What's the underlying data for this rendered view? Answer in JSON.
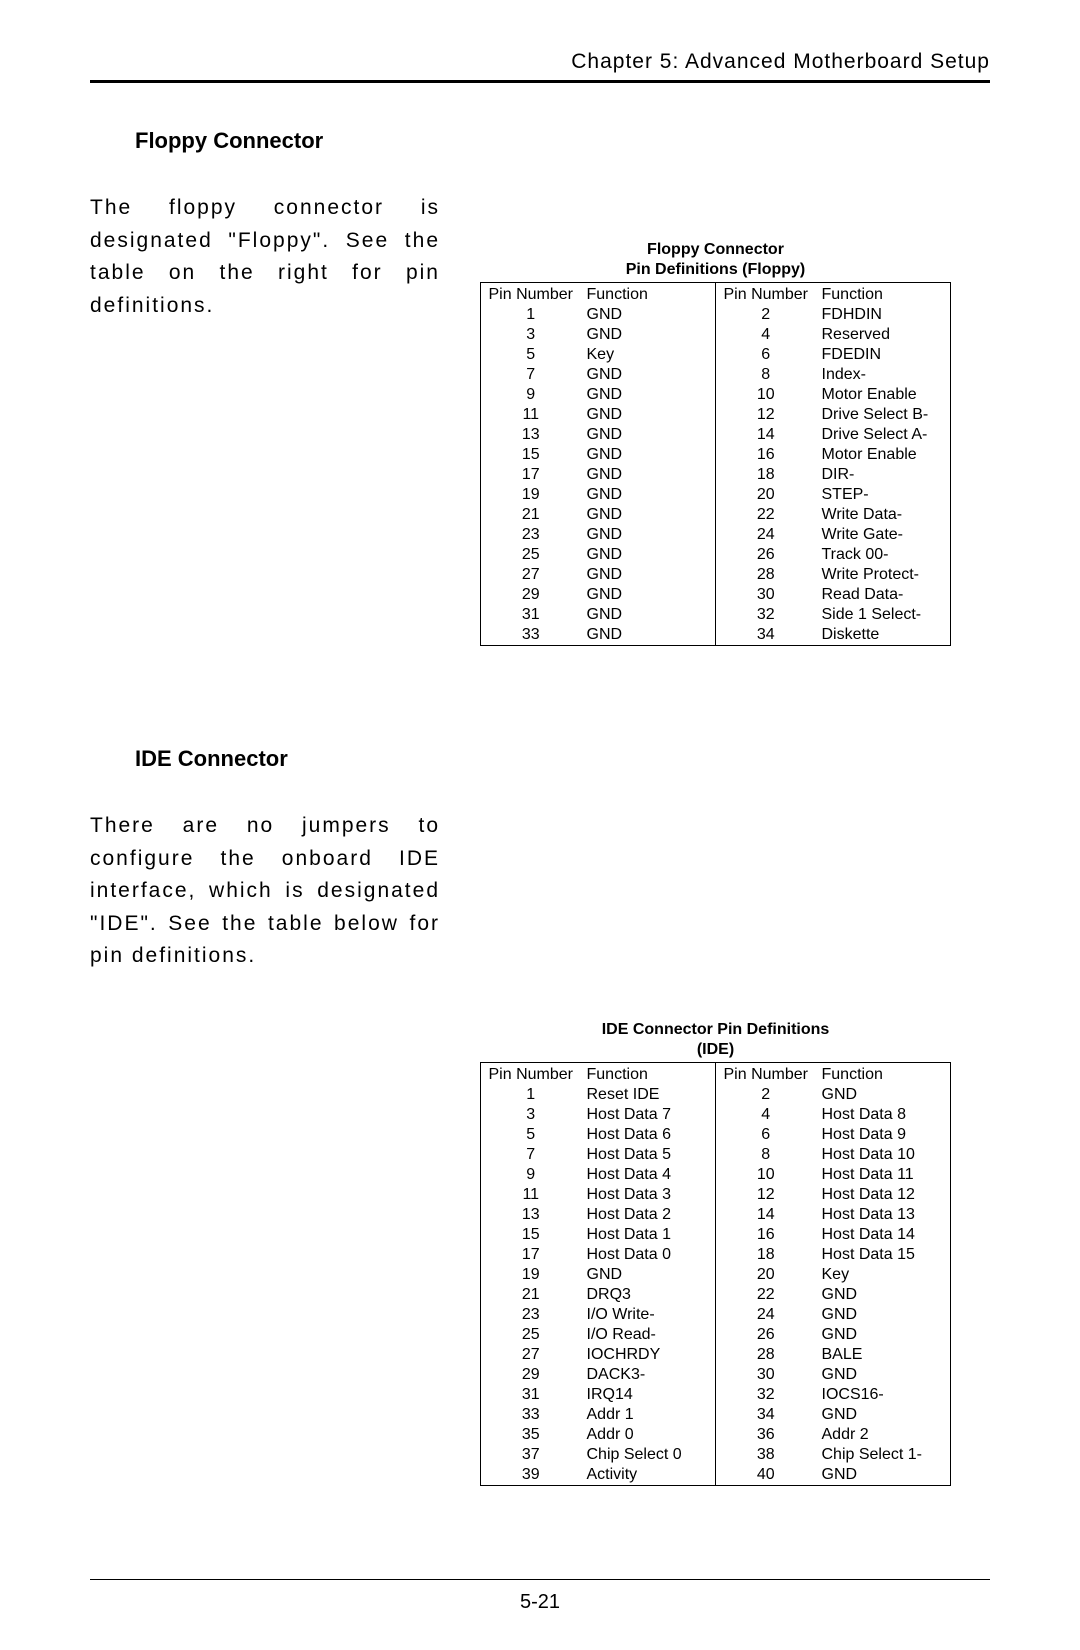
{
  "chapter_header": "Chapter 5: Advanced Motherboard Setup",
  "page_number": "5-21",
  "floppy": {
    "heading": "Floppy Connector",
    "text": "The floppy connector is designated \"Floppy\".  See the table on the right for pin definitions.",
    "table_title_1": "Floppy Connector",
    "table_title_2": "Pin Definitions (Floppy)",
    "col_headers": {
      "pn": "Pin Number",
      "fn": "Function"
    },
    "rows": [
      {
        "p1": "1",
        "f1": "GND",
        "p2": "2",
        "f2": "FDHDIN"
      },
      {
        "p1": "3",
        "f1": "GND",
        "p2": "4",
        "f2": "Reserved"
      },
      {
        "p1": "5",
        "f1": "Key",
        "p2": "6",
        "f2": "FDEDIN"
      },
      {
        "p1": "7",
        "f1": "GND",
        "p2": "8",
        "f2": "Index-"
      },
      {
        "p1": "9",
        "f1": "GND",
        "p2": "10",
        "f2": "Motor Enable"
      },
      {
        "p1": "11",
        "f1": "GND",
        "p2": "12",
        "f2": "Drive Select B-"
      },
      {
        "p1": "13",
        "f1": "GND",
        "p2": "14",
        "f2": "Drive Select A-"
      },
      {
        "p1": "15",
        "f1": "GND",
        "p2": "16",
        "f2": "Motor Enable"
      },
      {
        "p1": "17",
        "f1": "GND",
        "p2": "18",
        "f2": "DIR-"
      },
      {
        "p1": "19",
        "f1": "GND",
        "p2": "20",
        "f2": "STEP-"
      },
      {
        "p1": "21",
        "f1": "GND",
        "p2": "22",
        "f2": "Write Data-"
      },
      {
        "p1": "23",
        "f1": "GND",
        "p2": "24",
        "f2": "Write Gate-"
      },
      {
        "p1": "25",
        "f1": "GND",
        "p2": "26",
        "f2": "Track 00-"
      },
      {
        "p1": "27",
        "f1": "GND",
        "p2": "28",
        "f2": "Write Protect-"
      },
      {
        "p1": "29",
        "f1": "GND",
        "p2": "30",
        "f2": "Read Data-"
      },
      {
        "p1": "31",
        "f1": "GND",
        "p2": "32",
        "f2": "Side 1 Select-"
      },
      {
        "p1": "33",
        "f1": "GND",
        "p2": "34",
        "f2": "Diskette"
      }
    ]
  },
  "ide": {
    "heading": "IDE Connector",
    "text": "There are no jumpers to configure the onboard IDE interface, which is designated \"IDE\".  See the table below for pin definitions.",
    "table_title_1": "IDE Connector Pin Definitions",
    "table_title_2": "(IDE)",
    "col_headers": {
      "pn": "Pin Number",
      "fn": "Function"
    },
    "rows": [
      {
        "p1": "1",
        "f1": "Reset IDE",
        "p2": "2",
        "f2": "GND"
      },
      {
        "p1": "3",
        "f1": "Host Data 7",
        "p2": "4",
        "f2": "Host Data 8"
      },
      {
        "p1": "5",
        "f1": "Host Data 6",
        "p2": "6",
        "f2": "Host Data 9"
      },
      {
        "p1": "7",
        "f1": "Host Data 5",
        "p2": "8",
        "f2": "Host Data 10"
      },
      {
        "p1": "9",
        "f1": "Host Data 4",
        "p2": "10",
        "f2": "Host Data 11"
      },
      {
        "p1": "11",
        "f1": "Host Data 3",
        "p2": "12",
        "f2": "Host Data 12"
      },
      {
        "p1": "13",
        "f1": "Host Data 2",
        "p2": "14",
        "f2": "Host Data 13"
      },
      {
        "p1": "15",
        "f1": "Host Data 1",
        "p2": "16",
        "f2": "Host Data 14"
      },
      {
        "p1": "17",
        "f1": "Host Data 0",
        "p2": "18",
        "f2": "Host Data 15"
      },
      {
        "p1": "19",
        "f1": "GND",
        "p2": "20",
        "f2": "Key"
      },
      {
        "p1": "21",
        "f1": "DRQ3",
        "p2": "22",
        "f2": "GND"
      },
      {
        "p1": "23",
        "f1": "I/O Write-",
        "p2": "24",
        "f2": "GND"
      },
      {
        "p1": "25",
        "f1": "I/O Read-",
        "p2": "26",
        "f2": "GND"
      },
      {
        "p1": "27",
        "f1": "IOCHRDY",
        "p2": "28",
        "f2": "BALE"
      },
      {
        "p1": "29",
        "f1": "DACK3-",
        "p2": "30",
        "f2": "GND"
      },
      {
        "p1": "31",
        "f1": "IRQ14",
        "p2": "32",
        "f2": "IOCS16-"
      },
      {
        "p1": "33",
        "f1": "Addr 1",
        "p2": "34",
        "f2": "GND"
      },
      {
        "p1": "35",
        "f1": "Addr 0",
        "p2": "36",
        "f2": "Addr 2"
      },
      {
        "p1": "37",
        "f1": "Chip Select 0",
        "p2": "38",
        "f2": "Chip Select 1-"
      },
      {
        "p1": "39",
        "f1": "Activity",
        "p2": "40",
        "f2": "GND"
      }
    ]
  }
}
